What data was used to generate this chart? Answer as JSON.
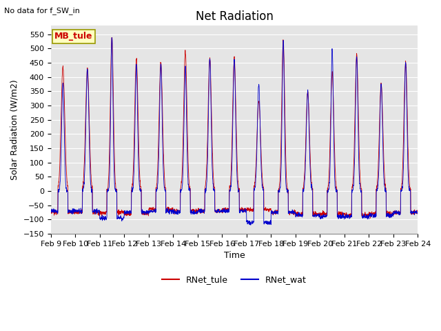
{
  "title": "Net Radiation",
  "xlabel": "Time",
  "ylabel": "Solar Radiation (W/m2)",
  "top_left_text": "No data for f_SW_in",
  "legend_label_text": "MB_tule",
  "ylim": [
    -150,
    580
  ],
  "yticks": [
    -150,
    -100,
    -50,
    0,
    50,
    100,
    150,
    200,
    250,
    300,
    350,
    400,
    450,
    500,
    550
  ],
  "background_color": "#e5e5e5",
  "line1_color": "#cc0000",
  "line2_color": "#0000cc",
  "legend1": "RNet_tule",
  "legend2": "RNet_wat",
  "fig_width": 6.4,
  "fig_height": 4.8,
  "dpi": 100,
  "title_fontsize": 12,
  "label_fontsize": 9,
  "tick_fontsize": 8
}
